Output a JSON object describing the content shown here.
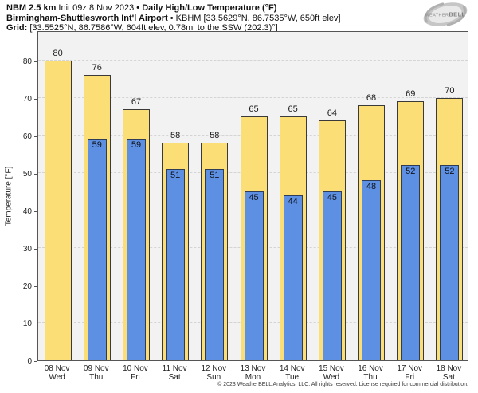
{
  "header": {
    "model": "NBM 2.5 km",
    "init": "Init 09z 8 Nov 2023",
    "bullet1": "•",
    "product": "Daily High/Low Temperature (°F)",
    "station": "Birmingham-Shuttlesworth Int'l Airport",
    "bullet2": "•",
    "station_detail": "KBHM [33.5629°N, 86.7535°W, 650ft elev]",
    "grid_label": "Grid:",
    "grid_detail": "[33.5525°N, 86.7586°W, 604ft elev, 0.78mi to the SSW (202.3)°]"
  },
  "logo": {
    "name": "weatherbell-logo",
    "text_weather": "WEATHER",
    "text_bell": "BELL"
  },
  "chart_data": {
    "type": "bar",
    "title": "Daily High/Low Temperature (°F)",
    "ylabel": "Temperature [°F]",
    "ylim": [
      0,
      88
    ],
    "yticks": [
      0,
      10,
      20,
      30,
      40,
      50,
      60,
      70,
      80
    ],
    "grid": {
      "axis": "y",
      "style": "dashed",
      "color": "#d4d4d4"
    },
    "plot_bg": "#f2f2f2",
    "legend": null,
    "categories": [
      {
        "date": "08 Nov",
        "day": "Wed"
      },
      {
        "date": "09 Nov",
        "day": "Thu"
      },
      {
        "date": "10 Nov",
        "day": "Fri"
      },
      {
        "date": "11 Nov",
        "day": "Sat"
      },
      {
        "date": "12 Nov",
        "day": "Sun"
      },
      {
        "date": "13 Nov",
        "day": "Mon"
      },
      {
        "date": "14 Nov",
        "day": "Tue"
      },
      {
        "date": "15 Nov",
        "day": "Wed"
      },
      {
        "date": "16 Nov",
        "day": "Thu"
      },
      {
        "date": "17 Nov",
        "day": "Fri"
      },
      {
        "date": "18 Nov",
        "day": "Sat"
      }
    ],
    "series": [
      {
        "name": "Daily High",
        "color": "#fbdf76",
        "values": [
          80,
          76,
          67,
          58,
          58,
          65,
          65,
          64,
          68,
          69,
          70
        ]
      },
      {
        "name": "Daily Low",
        "color": "#5d8fe2",
        "values": [
          null,
          59,
          59,
          51,
          51,
          45,
          44,
          45,
          48,
          52,
          52
        ]
      }
    ]
  },
  "footer": {
    "copyright": "© 2023 WeatherBELL Analytics, LLC. All rights reserved. License required for commercial distribution."
  }
}
